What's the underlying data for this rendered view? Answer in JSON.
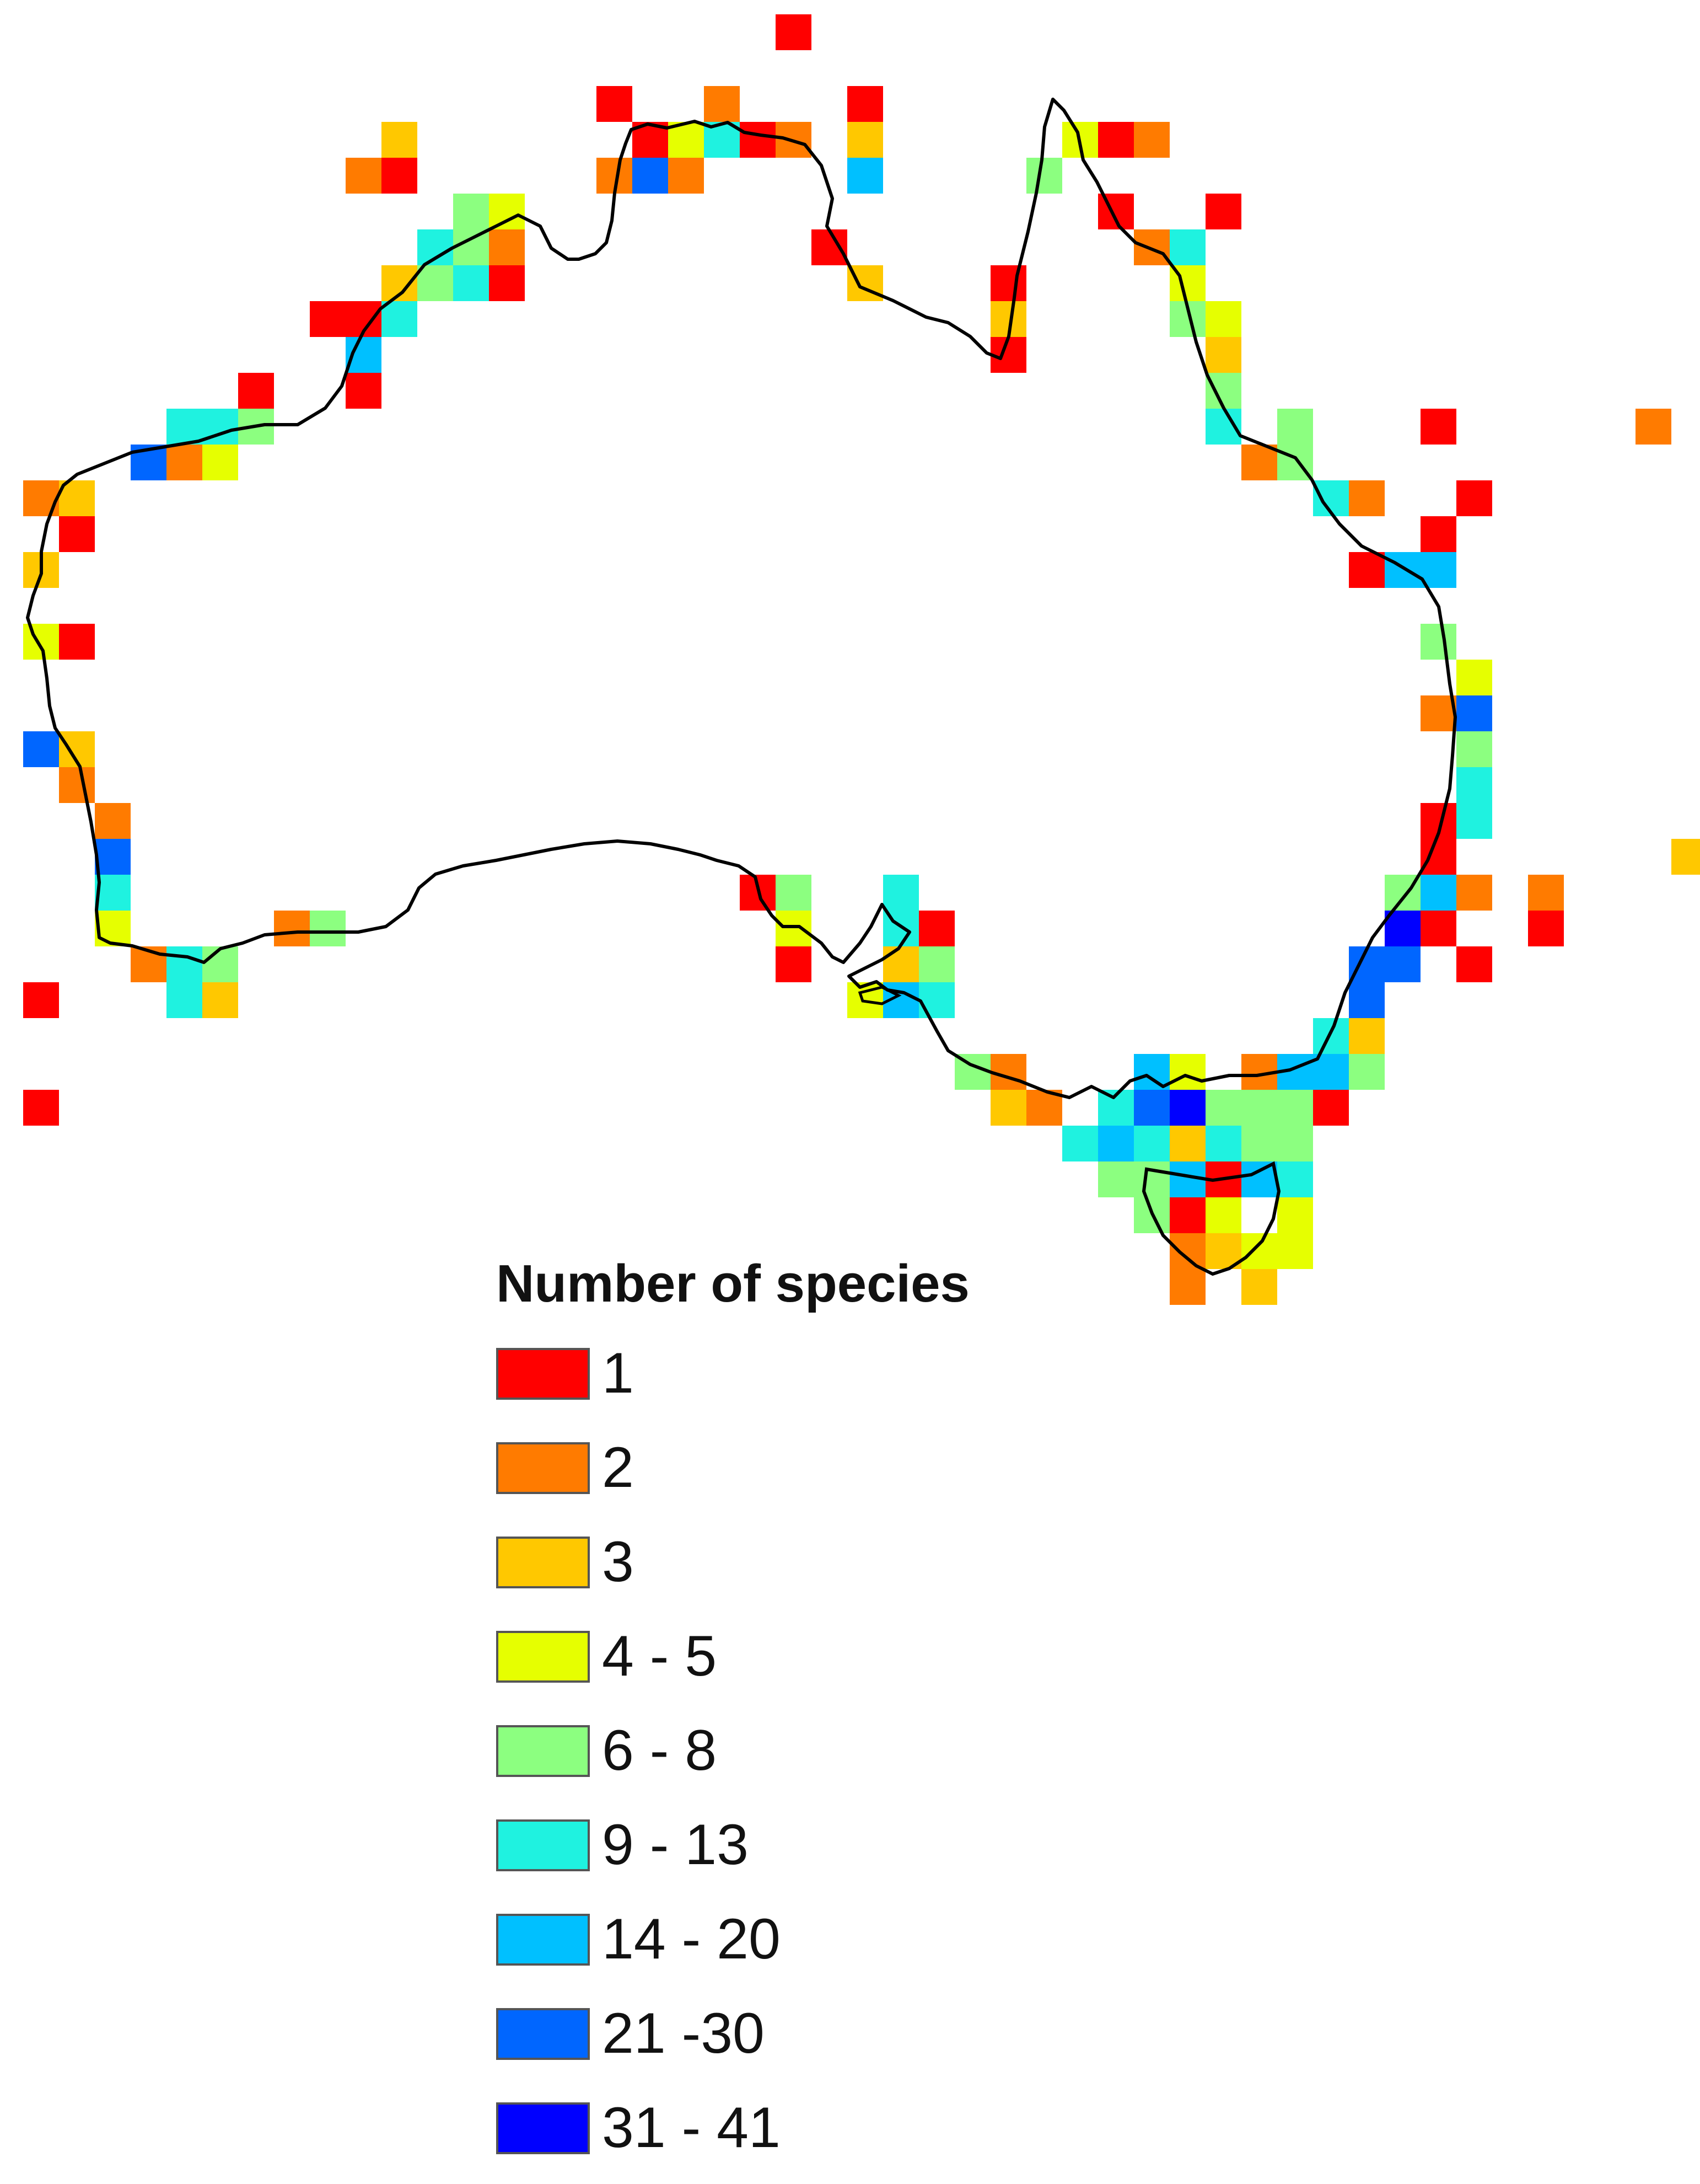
{
  "legend": {
    "title": "Number of species",
    "classes": [
      {
        "label": "1",
        "color": "#ff0000"
      },
      {
        "label": "2",
        "color": "#ff7b00"
      },
      {
        "label": "3",
        "color": "#ffc800"
      },
      {
        "label": "4 - 5",
        "color": "#e6ff00"
      },
      {
        "label": "6 - 8",
        "color": "#8cff80"
      },
      {
        "label": "9 - 13",
        "color": "#1ff2e0"
      },
      {
        "label": "14 - 20",
        "color": "#00c0ff"
      },
      {
        "label": "21 -30",
        "color": "#0066ff"
      },
      {
        "label": "31 - 41",
        "color": "#0000ff"
      }
    ]
  },
  "map": {
    "region": "Australian coastline",
    "outline_color": "#000000",
    "cell_grid": [
      {
        "row": 0,
        "col": 21,
        "class": 0
      },
      {
        "row": 2,
        "col": 16,
        "class": 0
      },
      {
        "row": 2,
        "col": 19,
        "class": 1
      },
      {
        "row": 2,
        "col": 23,
        "class": 0
      },
      {
        "row": 3,
        "col": 10,
        "class": 2
      },
      {
        "row": 3,
        "col": 17,
        "class": 0
      },
      {
        "row": 3,
        "col": 18,
        "class": 3
      },
      {
        "row": 3,
        "col": 19,
        "class": 5
      },
      {
        "row": 3,
        "col": 20,
        "class": 0
      },
      {
        "row": 3,
        "col": 21,
        "class": 1
      },
      {
        "row": 3,
        "col": 23,
        "class": 2
      },
      {
        "row": 3,
        "col": 29,
        "class": 3
      },
      {
        "row": 3,
        "col": 30,
        "class": 0
      },
      {
        "row": 3,
        "col": 31,
        "class": 1
      },
      {
        "row": 4,
        "col": 9,
        "class": 1
      },
      {
        "row": 4,
        "col": 10,
        "class": 0
      },
      {
        "row": 4,
        "col": 16,
        "class": 1
      },
      {
        "row": 4,
        "col": 17,
        "class": 7
      },
      {
        "row": 4,
        "col": 18,
        "class": 1
      },
      {
        "row": 4,
        "col": 23,
        "class": 6
      },
      {
        "row": 4,
        "col": 28,
        "class": 4
      },
      {
        "row": 5,
        "col": 12,
        "class": 4
      },
      {
        "row": 5,
        "col": 13,
        "class": 3
      },
      {
        "row": 5,
        "col": 30,
        "class": 0
      },
      {
        "row": 5,
        "col": 33,
        "class": 0
      },
      {
        "row": 6,
        "col": 11,
        "class": 5
      },
      {
        "row": 6,
        "col": 12,
        "class": 4
      },
      {
        "row": 6,
        "col": 13,
        "class": 1
      },
      {
        "row": 6,
        "col": 22,
        "class": 0
      },
      {
        "row": 6,
        "col": 31,
        "class": 1
      },
      {
        "row": 6,
        "col": 32,
        "class": 5
      },
      {
        "row": 7,
        "col": 10,
        "class": 2
      },
      {
        "row": 7,
        "col": 11,
        "class": 4
      },
      {
        "row": 7,
        "col": 12,
        "class": 5
      },
      {
        "row": 7,
        "col": 13,
        "class": 0
      },
      {
        "row": 7,
        "col": 23,
        "class": 2
      },
      {
        "row": 7,
        "col": 27,
        "class": 0
      },
      {
        "row": 7,
        "col": 32,
        "class": 3
      },
      {
        "row": 8,
        "col": 8,
        "class": 0
      },
      {
        "row": 8,
        "col": 9,
        "class": 0
      },
      {
        "row": 8,
        "col": 10,
        "class": 5
      },
      {
        "row": 8,
        "col": 27,
        "class": 2
      },
      {
        "row": 8,
        "col": 32,
        "class": 4
      },
      {
        "row": 8,
        "col": 33,
        "class": 3
      },
      {
        "row": 9,
        "col": 9,
        "class": 6
      },
      {
        "row": 9,
        "col": 27,
        "class": 0
      },
      {
        "row": 9,
        "col": 33,
        "class": 2
      },
      {
        "row": 10,
        "col": 6,
        "class": 0
      },
      {
        "row": 10,
        "col": 9,
        "class": 0
      },
      {
        "row": 10,
        "col": 33,
        "class": 4
      },
      {
        "row": 11,
        "col": 4,
        "class": 5
      },
      {
        "row": 11,
        "col": 5,
        "class": 5
      },
      {
        "row": 11,
        "col": 6,
        "class": 4
      },
      {
        "row": 11,
        "col": 33,
        "class": 5
      },
      {
        "row": 11,
        "col": 35,
        "class": 4
      },
      {
        "row": 11,
        "col": 39,
        "class": 0
      },
      {
        "row": 11,
        "col": 45,
        "class": 1
      },
      {
        "row": 12,
        "col": 3,
        "class": 7
      },
      {
        "row": 12,
        "col": 4,
        "class": 1
      },
      {
        "row": 12,
        "col": 5,
        "class": 3
      },
      {
        "row": 12,
        "col": 34,
        "class": 1
      },
      {
        "row": 12,
        "col": 35,
        "class": 4
      },
      {
        "row": 13,
        "col": 0,
        "class": 1
      },
      {
        "row": 13,
        "col": 1,
        "class": 2
      },
      {
        "row": 13,
        "col": 36,
        "class": 5
      },
      {
        "row": 13,
        "col": 37,
        "class": 1
      },
      {
        "row": 13,
        "col": 40,
        "class": 0
      },
      {
        "row": 14,
        "col": 1,
        "class": 0
      },
      {
        "row": 14,
        "col": 39,
        "class": 0
      },
      {
        "row": 15,
        "col": 0,
        "class": 2
      },
      {
        "row": 15,
        "col": 37,
        "class": 0
      },
      {
        "row": 15,
        "col": 38,
        "class": 6
      },
      {
        "row": 15,
        "col": 39,
        "class": 6
      },
      {
        "row": 17,
        "col": 0,
        "class": 3
      },
      {
        "row": 17,
        "col": 1,
        "class": 0
      },
      {
        "row": 17,
        "col": 39,
        "class": 4
      },
      {
        "row": 18,
        "col": 40,
        "class": 3
      },
      {
        "row": 19,
        "col": 39,
        "class": 1
      },
      {
        "row": 19,
        "col": 40,
        "class": 7
      },
      {
        "row": 20,
        "col": 0,
        "class": 7
      },
      {
        "row": 20,
        "col": 1,
        "class": 2
      },
      {
        "row": 20,
        "col": 40,
        "class": 4
      },
      {
        "row": 21,
        "col": 1,
        "class": 1
      },
      {
        "row": 21,
        "col": 40,
        "class": 5
      },
      {
        "row": 22,
        "col": 2,
        "class": 1
      },
      {
        "row": 22,
        "col": 39,
        "class": 0
      },
      {
        "row": 22,
        "col": 40,
        "class": 5
      },
      {
        "row": 23,
        "col": 2,
        "class": 7
      },
      {
        "row": 23,
        "col": 39,
        "class": 0
      },
      {
        "row": 23,
        "col": 46,
        "class": 2
      },
      {
        "row": 24,
        "col": 2,
        "class": 5
      },
      {
        "row": 24,
        "col": 20,
        "class": 0
      },
      {
        "row": 24,
        "col": 21,
        "class": 4
      },
      {
        "row": 24,
        "col": 24,
        "class": 5
      },
      {
        "row": 24,
        "col": 38,
        "class": 4
      },
      {
        "row": 24,
        "col": 39,
        "class": 6
      },
      {
        "row": 24,
        "col": 40,
        "class": 1
      },
      {
        "row": 24,
        "col": 42,
        "class": 1
      },
      {
        "row": 25,
        "col": 2,
        "class": 3
      },
      {
        "row": 25,
        "col": 7,
        "class": 1
      },
      {
        "row": 25,
        "col": 8,
        "class": 4
      },
      {
        "row": 25,
        "col": 21,
        "class": 3
      },
      {
        "row": 25,
        "col": 24,
        "class": 5
      },
      {
        "row": 25,
        "col": 25,
        "class": 0
      },
      {
        "row": 25,
        "col": 38,
        "class": 8
      },
      {
        "row": 25,
        "col": 39,
        "class": 0
      },
      {
        "row": 25,
        "col": 42,
        "class": 0
      },
      {
        "row": 26,
        "col": 3,
        "class": 1
      },
      {
        "row": 26,
        "col": 4,
        "class": 5
      },
      {
        "row": 26,
        "col": 5,
        "class": 4
      },
      {
        "row": 26,
        "col": 21,
        "class": 0
      },
      {
        "row": 26,
        "col": 24,
        "class": 2
      },
      {
        "row": 26,
        "col": 25,
        "class": 4
      },
      {
        "row": 26,
        "col": 37,
        "class": 7
      },
      {
        "row": 26,
        "col": 38,
        "class": 7
      },
      {
        "row": 26,
        "col": 40,
        "class": 0
      },
      {
        "row": 27,
        "col": 0,
        "class": 0
      },
      {
        "row": 27,
        "col": 4,
        "class": 5
      },
      {
        "row": 27,
        "col": 5,
        "class": 2
      },
      {
        "row": 27,
        "col": 23,
        "class": 3
      },
      {
        "row": 27,
        "col": 24,
        "class": 6
      },
      {
        "row": 27,
        "col": 25,
        "class": 5
      },
      {
        "row": 27,
        "col": 37,
        "class": 7
      },
      {
        "row": 28,
        "col": 36,
        "class": 5
      },
      {
        "row": 28,
        "col": 37,
        "class": 2
      },
      {
        "row": 29,
        "col": 26,
        "class": 4
      },
      {
        "row": 29,
        "col": 27,
        "class": 1
      },
      {
        "row": 29,
        "col": 31,
        "class": 6
      },
      {
        "row": 29,
        "col": 32,
        "class": 3
      },
      {
        "row": 29,
        "col": 34,
        "class": 1
      },
      {
        "row": 29,
        "col": 35,
        "class": 6
      },
      {
        "row": 29,
        "col": 36,
        "class": 6
      },
      {
        "row": 29,
        "col": 37,
        "class": 4
      },
      {
        "row": 30,
        "col": 0,
        "class": 0
      },
      {
        "row": 30,
        "col": 27,
        "class": 2
      },
      {
        "row": 30,
        "col": 28,
        "class": 1
      },
      {
        "row": 30,
        "col": 30,
        "class": 5
      },
      {
        "row": 30,
        "col": 31,
        "class": 7
      },
      {
        "row": 30,
        "col": 32,
        "class": 8
      },
      {
        "row": 30,
        "col": 33,
        "class": 4
      },
      {
        "row": 30,
        "col": 34,
        "class": 4
      },
      {
        "row": 30,
        "col": 35,
        "class": 4
      },
      {
        "row": 30,
        "col": 36,
        "class": 0
      },
      {
        "row": 31,
        "col": 29,
        "class": 5
      },
      {
        "row": 31,
        "col": 30,
        "class": 6
      },
      {
        "row": 31,
        "col": 31,
        "class": 5
      },
      {
        "row": 31,
        "col": 32,
        "class": 2
      },
      {
        "row": 31,
        "col": 33,
        "class": 5
      },
      {
        "row": 31,
        "col": 34,
        "class": 4
      },
      {
        "row": 31,
        "col": 35,
        "class": 4
      },
      {
        "row": 32,
        "col": 30,
        "class": 4
      },
      {
        "row": 32,
        "col": 31,
        "class": 4
      },
      {
        "row": 32,
        "col": 32,
        "class": 6
      },
      {
        "row": 32,
        "col": 33,
        "class": 0
      },
      {
        "row": 32,
        "col": 34,
        "class": 6
      },
      {
        "row": 32,
        "col": 35,
        "class": 5
      },
      {
        "row": 33,
        "col": 31,
        "class": 4
      },
      {
        "row": 33,
        "col": 32,
        "class": 0
      },
      {
        "row": 33,
        "col": 33,
        "class": 3
      },
      {
        "row": 33,
        "col": 35,
        "class": 3
      },
      {
        "row": 34,
        "col": 32,
        "class": 1
      },
      {
        "row": 34,
        "col": 33,
        "class": 2
      },
      {
        "row": 34,
        "col": 34,
        "class": 3
      },
      {
        "row": 34,
        "col": 35,
        "class": 3
      },
      {
        "row": 35,
        "col": 32,
        "class": 1
      },
      {
        "row": 35,
        "col": 34,
        "class": 2
      }
    ]
  }
}
